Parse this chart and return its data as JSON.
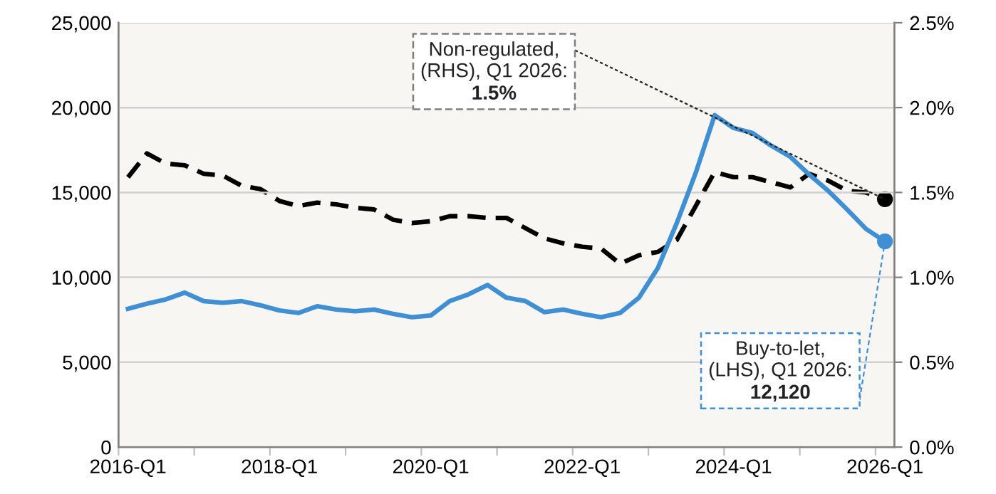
{
  "chart_data": {
    "type": "line",
    "categories": [
      "2016-Q1",
      null,
      null,
      null,
      null,
      null,
      null,
      null,
      "2018-Q1",
      null,
      null,
      null,
      null,
      null,
      null,
      null,
      "2020-Q1",
      null,
      null,
      null,
      null,
      null,
      null,
      null,
      "2022-Q1",
      null,
      null,
      null,
      null,
      null,
      null,
      null,
      "2024-Q1",
      null,
      null,
      null,
      null,
      null,
      null,
      null,
      "2026-Q1"
    ],
    "series": [
      {
        "color": "#000000",
        "line_style": "dashed",
        "axis": "y2",
        "values": [
          1.59,
          1.73,
          1.67,
          1.66,
          1.61,
          1.6,
          1.54,
          1.52,
          1.45,
          1.42,
          1.44,
          1.43,
          1.41,
          1.4,
          1.34,
          1.32,
          1.33,
          1.36,
          1.36,
          1.35,
          1.35,
          1.29,
          1.23,
          1.2,
          1.18,
          1.17,
          1.08,
          1.13,
          1.15,
          1.22,
          1.42,
          1.62,
          1.59,
          1.59,
          1.56,
          1.53,
          1.61,
          1.57,
          1.51,
          1.5,
          1.46
        ]
      },
      {
        "color": "#3f8fd2",
        "line_style": "solid",
        "values": [
          8150,
          8450,
          8700,
          9100,
          8600,
          8500,
          8600,
          8350,
          8050,
          7900,
          8300,
          8100,
          8000,
          8100,
          7850,
          7650,
          7750,
          8600,
          9000,
          9550,
          8800,
          8600,
          7950,
          8100,
          7850,
          7650,
          7900,
          8800,
          10550,
          13200,
          16150,
          19550,
          18800,
          18500,
          17750,
          17100,
          16050,
          15100,
          14000,
          12850,
          12120
        ]
      }
    ],
    "ylim": [
      0,
      25000
    ],
    "yticks": [
      {
        "value": 0,
        "label": "0"
      },
      {
        "value": 5000,
        "label": "5,000"
      },
      {
        "value": 10000,
        "label": "10,000"
      },
      {
        "value": 15000,
        "label": "15,000"
      },
      {
        "value": 20000,
        "label": "20,000"
      },
      {
        "value": 25000,
        "label": "25,000"
      }
    ],
    "y2lim": [
      0,
      2.5
    ],
    "y2ticks": [
      {
        "value": 0,
        "label": "0.0%"
      },
      {
        "value": 0.5,
        "label": "0.5%"
      },
      {
        "value": 1.0,
        "label": "1.0%"
      },
      {
        "value": 1.5,
        "label": "1.5%"
      },
      {
        "value": 2.0,
        "label": "2.0%"
      },
      {
        "value": 2.5,
        "label": "2.5%"
      }
    ],
    "grid": "y",
    "annotations": [
      "Non-regulated,\n(RHS), Q1 2026:\n1.5%",
      {
        "text": "Buy-to-let,\n(LHS), Q1 2026:\n12,120",
        "x": "2026-Q1",
        "y": 12120
      }
    ]
  }
}
